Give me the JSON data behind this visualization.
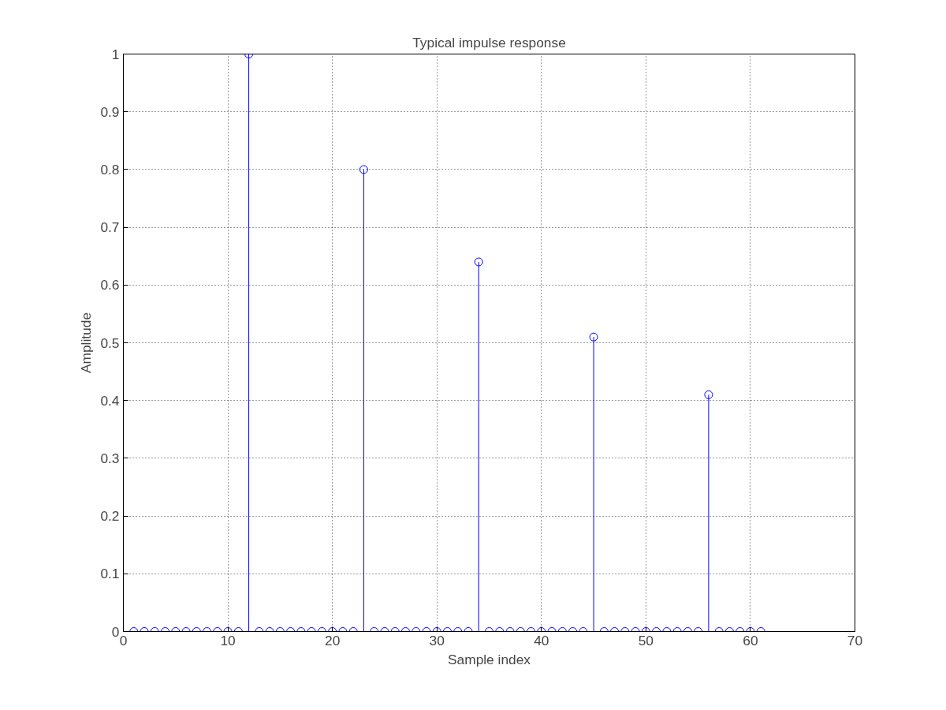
{
  "chart_data": {
    "type": "lollipop",
    "title": "Typical impulse response",
    "xlabel": "Sample index",
    "ylabel": "Amplitude",
    "x": [
      1,
      2,
      3,
      4,
      5,
      6,
      7,
      8,
      9,
      10,
      11,
      12,
      13,
      14,
      15,
      16,
      17,
      18,
      19,
      20,
      21,
      22,
      23,
      24,
      25,
      26,
      27,
      28,
      29,
      30,
      31,
      32,
      33,
      34,
      35,
      36,
      37,
      38,
      39,
      40,
      41,
      42,
      43,
      44,
      45,
      46,
      47,
      48,
      49,
      50,
      51,
      52,
      53,
      54,
      55,
      56,
      57,
      58,
      59,
      60,
      61
    ],
    "values": [
      0,
      0,
      0,
      0,
      0,
      0,
      0,
      0,
      0,
      0,
      0,
      1,
      0,
      0,
      0,
      0,
      0,
      0,
      0,
      0,
      0,
      0,
      0.8,
      0,
      0,
      0,
      0,
      0,
      0,
      0,
      0,
      0,
      0,
      0.64,
      0,
      0,
      0,
      0,
      0,
      0,
      0,
      0,
      0,
      0,
      0.51,
      0,
      0,
      0,
      0,
      0,
      0,
      0,
      0,
      0,
      0,
      0.41,
      0,
      0,
      0,
      0,
      0
    ],
    "color": "#0000ff",
    "marker": "circle",
    "xlim": [
      0,
      70
    ],
    "xticks": [
      0,
      10,
      20,
      30,
      40,
      50,
      60,
      70
    ],
    "ylim": [
      0,
      1
    ],
    "yticks": [
      0,
      {
        "value": 0.1,
        "label": "0.1"
      },
      {
        "value": 0.2,
        "label": "0.2"
      },
      {
        "value": 0.3,
        "label": "0.3"
      },
      {
        "value": 0.4,
        "label": "0.4"
      },
      {
        "value": 0.5,
        "label": "0.5"
      },
      {
        "value": 0.6,
        "label": "0.6"
      },
      {
        "value": 0.7,
        "label": "0.7"
      },
      {
        "value": 0.8,
        "label": "0.8"
      },
      {
        "value": 0.9,
        "label": "0.9"
      },
      1
    ],
    "grid": true
  }
}
